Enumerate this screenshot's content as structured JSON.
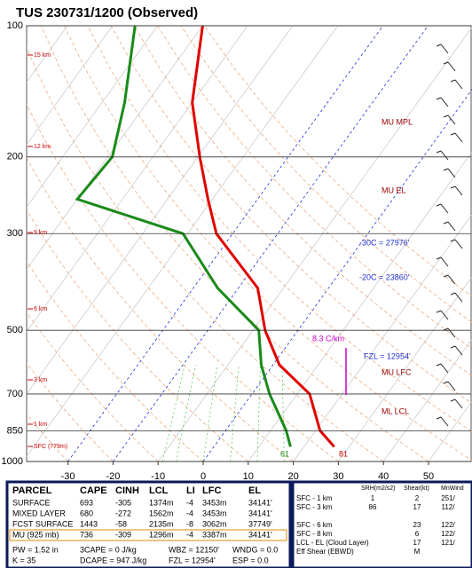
{
  "chart_data": {
    "type": "skew-t",
    "title": "TUS  230731/1200  (Observed)",
    "ylog": true,
    "ylim": [
      1000,
      100
    ],
    "yticks": [
      100,
      200,
      300,
      500,
      700,
      850,
      1000
    ],
    "xlim": [
      -40,
      60
    ],
    "xticks": [
      -30,
      -20,
      -10,
      0,
      10,
      20,
      30,
      40,
      50
    ],
    "pressure": [
      925,
      850,
      700,
      600,
      500,
      400,
      300,
      250,
      200,
      150,
      100
    ],
    "series": [
      {
        "color": "#e00000",
        "values": [
          26.7,
          21,
          12.8,
          1.4,
          -7.3,
          -15.7,
          -33.6,
          -41,
          -49.6,
          -60,
          -70
        ]
      },
      {
        "color": "#1a8a1a",
        "values": [
          17,
          13.5,
          3.9,
          -2.6,
          -8.7,
          -24.6,
          -41,
          -70,
          -69,
          -75,
          -85
        ]
      }
    ],
    "height_labels": [
      "15 km",
      "12 km",
      "9 km",
      "6 km",
      "3 km",
      "1 km",
      "SFC (779m)"
    ],
    "level_labels": [
      "MU MPL",
      "MU EL",
      "-30C = 27976'",
      "-20C = 23860'",
      "8.3 C/km",
      "FZL = 12954'",
      "MU LFC",
      "ML LCL",
      "61",
      "81"
    ],
    "parcel_table": {
      "header": [
        "PARCEL",
        "CAPE",
        "CINH",
        "LCL",
        "LI",
        "LFC",
        "EL"
      ],
      "rows": [
        [
          "SURFACE",
          "693",
          "-305",
          "1374m",
          "-4",
          "3453m",
          "34141'"
        ],
        [
          "MIXED LAYER",
          "680",
          "-272",
          "1562m",
          "-4",
          "3453m",
          "34141'"
        ],
        [
          "FCST SURFACE",
          "1443",
          "-58",
          "2135m",
          "-8",
          "3062m",
          "37749'"
        ],
        [
          "MU  (925 mb)",
          "736",
          "-309",
          "1296m",
          "-4",
          "3387m",
          "34141'"
        ]
      ],
      "extra": [
        [
          "PW = 1.52 in",
          "3CAPE = 0 J/kg",
          "WBZ = 12150'",
          "WNDG = 0.0"
        ],
        [
          "K = 35",
          "DCAPE = 947 J/kg",
          "FZL = 12954'",
          "ESP = 0.0"
        ]
      ]
    },
    "kinematics": {
      "header": [
        "SRH(m2/s2)",
        "Shear(kt)",
        "MnWind"
      ],
      "rows": [
        [
          "SFC - 1 km",
          "1",
          "2",
          "251/"
        ],
        [
          "SFC - 3 km",
          "86",
          "17",
          "112/"
        ],
        [
          "SFC - 6 km",
          "",
          "23",
          "122/"
        ],
        [
          "SFC - 8 km",
          "",
          "6",
          "122/"
        ],
        [
          "LCL - EL (Cloud Layer)",
          "",
          "17",
          "121/"
        ],
        [
          "Eff Shear (EBWD)",
          "",
          "M",
          ""
        ]
      ]
    }
  }
}
